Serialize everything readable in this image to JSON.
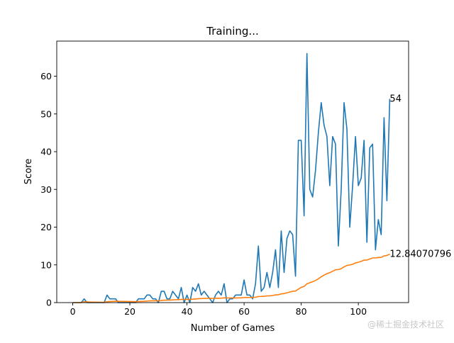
{
  "chart_data": {
    "type": "line",
    "title": "Training...",
    "xlabel": "Number of Games",
    "ylabel": "Score",
    "xlim": [
      -5.6,
      117.6
    ],
    "ylim": [
      0,
      69.3
    ],
    "xticks": [
      0,
      20,
      40,
      60,
      80,
      100
    ],
    "yticks": [
      0,
      10,
      20,
      30,
      40,
      50,
      60
    ],
    "grid": false,
    "colors": {
      "score": "#1f77b4",
      "mean": "#ff7f0e"
    },
    "series": [
      {
        "key": "score",
        "values": [
          0,
          0,
          0,
          0,
          1,
          0,
          0,
          0,
          0,
          0,
          0,
          0,
          2,
          1,
          1,
          1,
          0,
          0,
          0,
          0,
          0,
          0,
          0,
          1,
          1,
          1,
          2,
          2,
          1,
          1,
          0,
          3,
          3,
          1,
          1,
          3,
          2,
          1,
          4,
          0,
          2,
          0,
          4,
          3,
          5,
          2,
          3,
          2,
          1,
          0,
          2,
          3,
          2,
          5,
          0,
          1,
          1,
          2,
          2,
          2,
          6,
          2,
          2,
          1,
          5,
          15,
          3,
          4,
          8,
          4,
          8,
          14,
          4,
          19,
          8,
          17,
          19,
          18,
          7,
          43,
          43,
          23,
          66,
          30,
          28,
          35,
          45,
          53,
          47,
          44,
          31,
          44,
          42,
          15,
          30,
          53,
          46,
          20,
          31,
          44,
          31,
          33,
          43,
          16,
          41,
          42,
          14,
          22,
          18,
          49,
          27,
          54
        ]
      },
      {
        "key": "mean",
        "values": [
          0,
          0,
          0,
          0,
          0.2,
          0.17,
          0.14,
          0.12,
          0.11,
          0.1,
          0.09,
          0.08,
          0.23,
          0.29,
          0.33,
          0.38,
          0.35,
          0.33,
          0.32,
          0.3,
          0.29,
          0.27,
          0.26,
          0.29,
          0.32,
          0.35,
          0.41,
          0.46,
          0.48,
          0.5,
          0.48,
          0.56,
          0.64,
          0.65,
          0.66,
          0.72,
          0.76,
          0.76,
          0.85,
          0.83,
          0.85,
          0.83,
          0.91,
          0.95,
          1.04,
          1.07,
          1.11,
          1.13,
          1.13,
          1.11,
          1.13,
          1.17,
          1.19,
          1.26,
          1.24,
          1.23,
          1.23,
          1.24,
          1.25,
          1.26,
          1.34,
          1.35,
          1.36,
          1.36,
          1.42,
          1.62,
          1.64,
          1.68,
          1.77,
          1.8,
          1.88,
          2.05,
          2.08,
          2.31,
          2.39,
          2.59,
          2.81,
          3.01,
          3.06,
          3.56,
          4.05,
          4.28,
          4.99,
          5.27,
          5.53,
          5.86,
          6.31,
          6.84,
          7.29,
          7.68,
          7.93,
          8.32,
          8.69,
          8.76,
          9.0,
          9.47,
          9.85,
          9.96,
          10.17,
          10.51,
          10.71,
          10.93,
          11.24,
          11.28,
          11.55,
          11.83,
          11.85,
          11.94,
          11.99,
          12.37,
          12.5,
          12.84
        ]
      }
    ],
    "end_labels": {
      "score": "54",
      "mean": "12.84070796"
    }
  },
  "watermark": "@稀土掘金技术社区"
}
